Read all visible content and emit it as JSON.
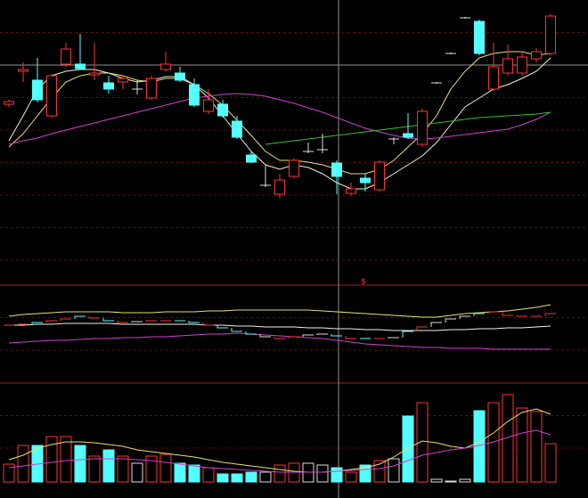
{
  "chart_data": [
    {
      "type": "candlestick",
      "ylim": [
        0,
        320
      ],
      "grid": true,
      "up_color": "#ff3232",
      "down_color": "#54ffff",
      "flat_color": "#dddddd",
      "annotation": "$",
      "open": [
        203,
        240,
        230,
        190,
        248,
        248,
        236,
        227,
        228,
        220,
        210,
        242,
        238,
        225,
        195,
        203,
        184,
        146,
        112,
        102,
        122,
        150,
        152,
        137,
        103,
        120,
        107,
        164,
        170,
        158,
        227,
        260,
        300,
        296,
        220,
        238,
        238,
        254,
        260
      ],
      "high": [
        208,
        250,
        255,
        237,
        272,
        282,
        272,
        235,
        235,
        230,
        235,
        262,
        245,
        232,
        220,
        208,
        190,
        150,
        135,
        125,
        142,
        160,
        170,
        140,
        115,
        125,
        140,
        166,
        193,
        198,
        228,
        261,
        301,
        298,
        272,
        270,
        262,
        266,
        304
      ],
      "low": [
        200,
        228,
        205,
        188,
        245,
        242,
        230,
        215,
        220,
        214,
        208,
        240,
        228,
        200,
        192,
        188,
        164,
        137,
        110,
        98,
        120,
        148,
        148,
        102,
        100,
        105,
        105,
        158,
        164,
        155,
        226,
        259,
        299,
        258,
        218,
        235,
        235,
        250,
        258
      ],
      "close": [
        206,
        242,
        208,
        235,
        265,
        243,
        238,
        220,
        232,
        220,
        232,
        248,
        230,
        202,
        208,
        190,
        166,
        138,
        112,
        118,
        140,
        150,
        152,
        122,
        108,
        115,
        138,
        164,
        166,
        195,
        227,
        260,
        300,
        260,
        245,
        254,
        256,
        262,
        302
      ],
      "series": [
        {
          "color": "#e8e070",
          "values": [
            155,
            170,
            190,
            210,
            228,
            235,
            238,
            238,
            235,
            230,
            228,
            232,
            232,
            225,
            215,
            202,
            185,
            168,
            150,
            140,
            140,
            138,
            135,
            130,
            125,
            125,
            130,
            140,
            155,
            170,
            190,
            220,
            240,
            255,
            260,
            262,
            262,
            258,
            260
          ]
        },
        {
          "color": "#f0f0d0",
          "values": [
            162,
            190,
            220,
            235,
            240,
            242,
            242,
            238,
            232,
            228,
            230,
            234,
            234,
            225,
            210,
            190,
            170,
            150,
            135,
            130,
            135,
            132,
            125,
            115,
            108,
            108,
            115,
            125,
            135,
            145,
            160,
            180,
            200,
            210,
            220,
            225,
            232,
            240,
            255
          ]
        },
        {
          "color": "#d040d0",
          "values": [
            158,
            162,
            165,
            170,
            174,
            178,
            182,
            186,
            190,
            194,
            198,
            202,
            206,
            210,
            212,
            214,
            215,
            214,
            212,
            208,
            204,
            199,
            194,
            188,
            182,
            176,
            172,
            168,
            165,
            164,
            165,
            167,
            169,
            171,
            173,
            175,
            180,
            186,
            194
          ]
        },
        {
          "color": "#30c030",
          "values": [
            null,
            null,
            null,
            null,
            null,
            null,
            null,
            null,
            null,
            null,
            null,
            null,
            null,
            null,
            null,
            null,
            null,
            null,
            158,
            160,
            162,
            164,
            166,
            168,
            170,
            172,
            174,
            176,
            178,
            180,
            182,
            184,
            186,
            188,
            189,
            190,
            191,
            192,
            194
          ]
        }
      ]
    },
    {
      "type": "line",
      "ylim": [
        0,
        110
      ],
      "grid": true,
      "steps": [
        65,
        66,
        68,
        70,
        72,
        75,
        73,
        70,
        68,
        69,
        70,
        70,
        70,
        68,
        65,
        62,
        58,
        55,
        52,
        50,
        52,
        54,
        55,
        53,
        50,
        50,
        50,
        51,
        58,
        63,
        68,
        72,
        75,
        78,
        80,
        76,
        75,
        75,
        78
      ],
      "series": [
        {
          "color": "#e8e070",
          "values": [
            75,
            77,
            78,
            79,
            80,
            80,
            80,
            80,
            79,
            79,
            79,
            80,
            80,
            80,
            81,
            81,
            82,
            82,
            82,
            82,
            82,
            82,
            81,
            80,
            79,
            78,
            77,
            76,
            75,
            74,
            74,
            76,
            78,
            79,
            80,
            81,
            83,
            85,
            88
          ]
        },
        {
          "color": "#f0f0f0",
          "values": [
            65,
            65,
            66,
            66,
            67,
            67,
            67,
            67,
            66,
            66,
            66,
            66,
            66,
            66,
            65,
            65,
            64,
            64,
            63,
            63,
            63,
            62,
            62,
            61,
            61,
            60,
            60,
            59,
            59,
            59,
            59,
            60,
            60,
            61,
            61,
            62,
            62,
            63,
            64
          ]
        },
        {
          "color": "#d040d0",
          "values": [
            45,
            46,
            47,
            48,
            48,
            49,
            50,
            50,
            51,
            51,
            52,
            52,
            53,
            54,
            55,
            55,
            56,
            55,
            54,
            53,
            52,
            51,
            50,
            48,
            46,
            44,
            43,
            42,
            41,
            40,
            40,
            39,
            39,
            39,
            38,
            38,
            38,
            38,
            38
          ]
        }
      ]
    },
    {
      "type": "bar",
      "ylim": [
        0,
        111
      ],
      "grid": true,
      "values": [
        20,
        41,
        41,
        51,
        51,
        41,
        29,
        36,
        29,
        21,
        29,
        31,
        21,
        19,
        16,
        9,
        9,
        11,
        11,
        19,
        21,
        21,
        19,
        16,
        11,
        19,
        24,
        26,
        74,
        89,
        3,
        1,
        3,
        80,
        89,
        98,
        83,
        79,
        43
      ],
      "series": [
        {
          "color": "#e8e070",
          "values": [
            25,
            30,
            38,
            42,
            45,
            45,
            44,
            42,
            40,
            36,
            34,
            32,
            30,
            28,
            25,
            22,
            20,
            18,
            16,
            14,
            12,
            11,
            11,
            12,
            14,
            16,
            20,
            28,
            38,
            46,
            44,
            40,
            38,
            45,
            55,
            68,
            78,
            82,
            76
          ]
        },
        {
          "color": "#d040d0",
          "values": [
            16,
            18,
            20,
            22,
            24,
            25,
            26,
            26,
            26,
            25,
            24,
            22,
            20,
            18,
            16,
            15,
            14,
            13,
            12,
            11,
            11,
            11,
            11,
            12,
            13,
            14,
            15,
            18,
            24,
            30,
            33,
            36,
            38,
            41,
            45,
            50,
            55,
            58,
            53
          ]
        }
      ]
    }
  ]
}
